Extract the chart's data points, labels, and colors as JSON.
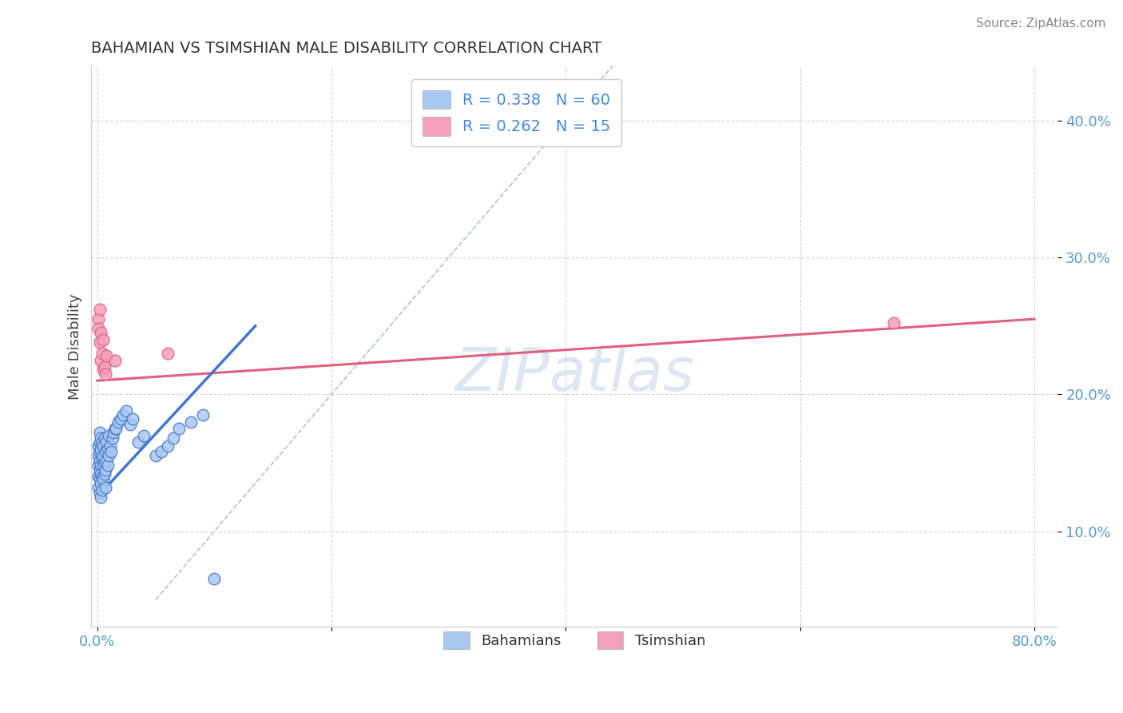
{
  "title": "BAHAMIAN VS TSIMSHIAN MALE DISABILITY CORRELATION CHART",
  "source": "Source: ZipAtlas.com",
  "ylabel": "Male Disability",
  "xlim": [
    -0.005,
    0.82
  ],
  "ylim": [
    0.03,
    0.44
  ],
  "xticks": [
    0.0,
    0.2,
    0.4,
    0.6,
    0.8
  ],
  "xticklabels": [
    "0.0%",
    "",
    "",
    "",
    "80.0%"
  ],
  "yticks": [
    0.1,
    0.2,
    0.3,
    0.4
  ],
  "yticklabels": [
    "10.0%",
    "20.0%",
    "30.0%",
    "40.0%"
  ],
  "watermark": "ZIPatlas",
  "blue_color": "#A8C8F0",
  "pink_color": "#F4A0B8",
  "blue_line_color": "#4477CC",
  "pink_line_color": "#E06080",
  "gray_dash_color": "#AABBCC",
  "bah_x": [
    0.001,
    0.001,
    0.001,
    0.001,
    0.001,
    0.002,
    0.002,
    0.002,
    0.002,
    0.002,
    0.002,
    0.002,
    0.003,
    0.003,
    0.003,
    0.003,
    0.003,
    0.003,
    0.004,
    0.004,
    0.004,
    0.004,
    0.005,
    0.005,
    0.005,
    0.005,
    0.006,
    0.006,
    0.006,
    0.007,
    0.007,
    0.007,
    0.008,
    0.008,
    0.009,
    0.009,
    0.01,
    0.01,
    0.011,
    0.012,
    0.013,
    0.014,
    0.015,
    0.016,
    0.018,
    0.02,
    0.022,
    0.025,
    0.028,
    0.03,
    0.035,
    0.04,
    0.05,
    0.055,
    0.06,
    0.065,
    0.07,
    0.08,
    0.09,
    0.1
  ],
  "bah_y": [
    0.155,
    0.148,
    0.162,
    0.14,
    0.132,
    0.158,
    0.145,
    0.152,
    0.138,
    0.165,
    0.128,
    0.172,
    0.16,
    0.148,
    0.135,
    0.142,
    0.168,
    0.125,
    0.153,
    0.165,
    0.14,
    0.13,
    0.155,
    0.148,
    0.162,
    0.138,
    0.15,
    0.168,
    0.142,
    0.158,
    0.132,
    0.145,
    0.165,
    0.152,
    0.148,
    0.16,
    0.155,
    0.17,
    0.162,
    0.158,
    0.168,
    0.172,
    0.175,
    0.175,
    0.18,
    0.182,
    0.185,
    0.188,
    0.178,
    0.182,
    0.165,
    0.17,
    0.155,
    0.158,
    0.162,
    0.168,
    0.175,
    0.18,
    0.185,
    0.065
  ],
  "tsim_x": [
    0.001,
    0.001,
    0.002,
    0.002,
    0.003,
    0.003,
    0.004,
    0.005,
    0.005,
    0.006,
    0.007,
    0.008,
    0.015,
    0.06,
    0.68
  ],
  "tsim_y": [
    0.255,
    0.248,
    0.262,
    0.238,
    0.225,
    0.245,
    0.23,
    0.218,
    0.24,
    0.22,
    0.215,
    0.228,
    0.225,
    0.23,
    0.252
  ],
  "bah_line_x": [
    0.0,
    0.135
  ],
  "bah_line_y": [
    0.125,
    0.25
  ],
  "tsim_line_x": [
    0.0,
    0.8
  ],
  "tsim_line_y": [
    0.21,
    0.255
  ],
  "ref_line_x": [
    0.05,
    0.44
  ],
  "ref_line_y": [
    0.05,
    0.44
  ]
}
